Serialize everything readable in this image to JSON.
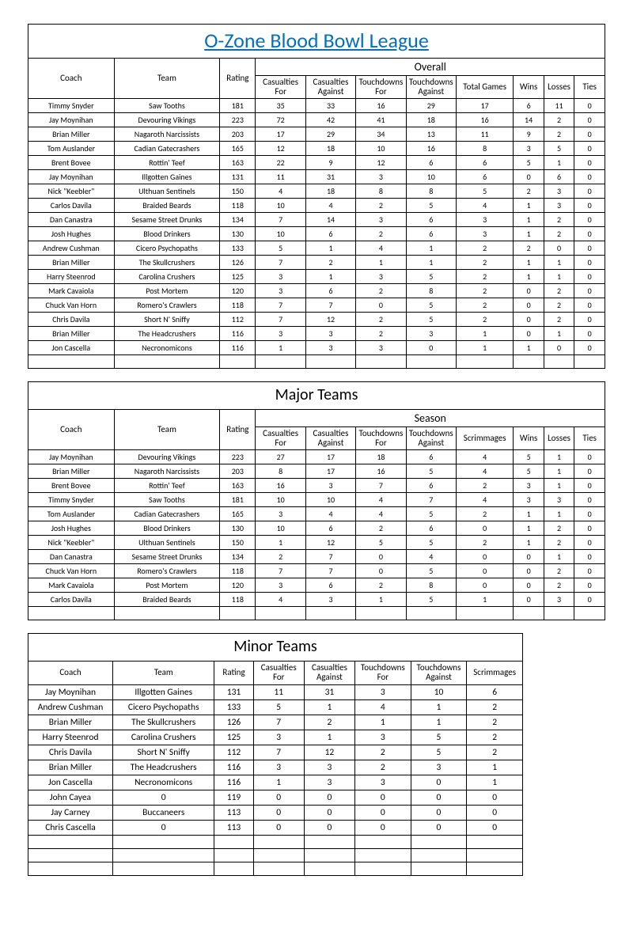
{
  "title": "O-Zone Blood Bowl League",
  "headers": {
    "coach": "Coach",
    "team": "Team",
    "rating": "Rating",
    "cas_for": "Casualties For",
    "cas_against": "Casualties Against",
    "td_for": "Touchdowns For",
    "td_against": "Touchdowns Against",
    "total_games": "Total Games",
    "scrimmages": "Scrimmages",
    "wins": "Wins",
    "losses": "Losses",
    "ties": "Ties"
  },
  "groups": {
    "overall": "Overall",
    "season": "Season",
    "major": "Major Teams",
    "minor": "Minor Teams"
  },
  "overall": [
    {
      "coach": "Timmy Snyder",
      "team": "Saw Tooths",
      "rating": 181,
      "cf": 35,
      "ca": 33,
      "tf": 16,
      "ta": 29,
      "games": 17,
      "w": 6,
      "l": 11,
      "t": 0
    },
    {
      "coach": "Jay Moynihan",
      "team": "Devouring Vikings",
      "rating": 223,
      "cf": 72,
      "ca": 42,
      "tf": 41,
      "ta": 18,
      "games": 16,
      "w": 14,
      "l": 2,
      "t": 0
    },
    {
      "coach": "Brian Miller",
      "team": "Nagaroth Narcissists",
      "rating": 203,
      "cf": 17,
      "ca": 29,
      "tf": 34,
      "ta": 13,
      "games": 11,
      "w": 9,
      "l": 2,
      "t": 0
    },
    {
      "coach": "Tom Auslander",
      "team": "Cadian Gatecrashers",
      "rating": 165,
      "cf": 12,
      "ca": 18,
      "tf": 10,
      "ta": 16,
      "games": 8,
      "w": 3,
      "l": 5,
      "t": 0
    },
    {
      "coach": "Brent Bovee",
      "team": "Rottin' Teef",
      "rating": 163,
      "cf": 22,
      "ca": 9,
      "tf": 12,
      "ta": 6,
      "games": 6,
      "w": 5,
      "l": 1,
      "t": 0
    },
    {
      "coach": "Jay Moynihan",
      "team": "Illgotten Gaines",
      "rating": 131,
      "cf": 11,
      "ca": 31,
      "tf": 3,
      "ta": 10,
      "games": 6,
      "w": 0,
      "l": 6,
      "t": 0
    },
    {
      "coach": "Nick \"Keebler\"",
      "team": "Ulthuan Sentinels",
      "rating": 150,
      "cf": 4,
      "ca": 18,
      "tf": 8,
      "ta": 8,
      "games": 5,
      "w": 2,
      "l": 3,
      "t": 0
    },
    {
      "coach": "Carlos Davila",
      "team": "Braided Beards",
      "rating": 118,
      "cf": 10,
      "ca": 4,
      "tf": 2,
      "ta": 5,
      "games": 4,
      "w": 1,
      "l": 3,
      "t": 0
    },
    {
      "coach": "Dan Canastra",
      "team": "Sesame Street Drunks",
      "rating": 134,
      "cf": 7,
      "ca": 14,
      "tf": 3,
      "ta": 6,
      "games": 3,
      "w": 1,
      "l": 2,
      "t": 0
    },
    {
      "coach": "Josh Hughes",
      "team": "Blood Drinkers",
      "rating": 130,
      "cf": 10,
      "ca": 6,
      "tf": 2,
      "ta": 6,
      "games": 3,
      "w": 1,
      "l": 2,
      "t": 0
    },
    {
      "coach": "Andrew Cushman",
      "team": "Cicero Psychopaths",
      "rating": 133,
      "cf": 5,
      "ca": 1,
      "tf": 4,
      "ta": 1,
      "games": 2,
      "w": 2,
      "l": 0,
      "t": 0
    },
    {
      "coach": "Brian Miller",
      "team": "The Skullcrushers",
      "rating": 126,
      "cf": 7,
      "ca": 2,
      "tf": 1,
      "ta": 1,
      "games": 2,
      "w": 1,
      "l": 1,
      "t": 0
    },
    {
      "coach": "Harry Steenrod",
      "team": "Carolina Crushers",
      "rating": 125,
      "cf": 3,
      "ca": 1,
      "tf": 3,
      "ta": 5,
      "games": 2,
      "w": 1,
      "l": 1,
      "t": 0
    },
    {
      "coach": "Mark Cavaiola",
      "team": "Post Mortem",
      "rating": 120,
      "cf": 3,
      "ca": 6,
      "tf": 2,
      "ta": 8,
      "games": 2,
      "w": 0,
      "l": 2,
      "t": 0
    },
    {
      "coach": "Chuck Van Horn",
      "team": "Romero's Crawlers",
      "rating": 118,
      "cf": 7,
      "ca": 7,
      "tf": 0,
      "ta": 5,
      "games": 2,
      "w": 0,
      "l": 2,
      "t": 0
    },
    {
      "coach": "Chris Davila",
      "team": "Short N' Sniffy",
      "rating": 112,
      "cf": 7,
      "ca": 12,
      "tf": 2,
      "ta": 5,
      "games": 2,
      "w": 0,
      "l": 2,
      "t": 0
    },
    {
      "coach": "Brian Miller",
      "team": "The Headcrushers",
      "rating": 116,
      "cf": 3,
      "ca": 3,
      "tf": 2,
      "ta": 3,
      "games": 1,
      "w": 0,
      "l": 1,
      "t": 0
    },
    {
      "coach": "Jon Cascella",
      "team": "Necronomicons",
      "rating": 116,
      "cf": 1,
      "ca": 3,
      "tf": 3,
      "ta": 0,
      "games": 1,
      "w": 1,
      "l": 0,
      "t": 0
    }
  ],
  "major": [
    {
      "coach": "Jay Moynihan",
      "team": "Devouring Vikings",
      "rating": 223,
      "cf": 27,
      "ca": 17,
      "tf": 18,
      "ta": 6,
      "scrim": 4,
      "w": 5,
      "l": 1,
      "t": 0
    },
    {
      "coach": "Brian Miller",
      "team": "Nagaroth Narcissists",
      "rating": 203,
      "cf": 8,
      "ca": 17,
      "tf": 16,
      "ta": 5,
      "scrim": 4,
      "w": 5,
      "l": 1,
      "t": 0
    },
    {
      "coach": "Brent Bovee",
      "team": "Rottin' Teef",
      "rating": 163,
      "cf": 16,
      "ca": 3,
      "tf": 7,
      "ta": 6,
      "scrim": 2,
      "w": 3,
      "l": 1,
      "t": 0
    },
    {
      "coach": "Timmy Snyder",
      "team": "Saw Tooths",
      "rating": 181,
      "cf": 10,
      "ca": 10,
      "tf": 4,
      "ta": 7,
      "scrim": 4,
      "w": 3,
      "l": 3,
      "t": 0
    },
    {
      "coach": "Tom Auslander",
      "team": "Cadian Gatecrashers",
      "rating": 165,
      "cf": 3,
      "ca": 4,
      "tf": 4,
      "ta": 5,
      "scrim": 2,
      "w": 1,
      "l": 1,
      "t": 0
    },
    {
      "coach": "Josh Hughes",
      "team": "Blood Drinkers",
      "rating": 130,
      "cf": 10,
      "ca": 6,
      "tf": 2,
      "ta": 6,
      "scrim": 0,
      "w": 1,
      "l": 2,
      "t": 0
    },
    {
      "coach": "Nick \"Keebler\"",
      "team": "Ulthuan Sentinels",
      "rating": 150,
      "cf": 1,
      "ca": 12,
      "tf": 5,
      "ta": 5,
      "scrim": 2,
      "w": 1,
      "l": 2,
      "t": 0
    },
    {
      "coach": "Dan Canastra",
      "team": "Sesame Street Drunks",
      "rating": 134,
      "cf": 2,
      "ca": 7,
      "tf": 0,
      "ta": 4,
      "scrim": 0,
      "w": 0,
      "l": 1,
      "t": 0
    },
    {
      "coach": "Chuck Van Horn",
      "team": "Romero's Crawlers",
      "rating": 118,
      "cf": 7,
      "ca": 7,
      "tf": 0,
      "ta": 5,
      "scrim": 0,
      "w": 0,
      "l": 2,
      "t": 0
    },
    {
      "coach": "Mark Cavaiola",
      "team": "Post Mortem",
      "rating": 120,
      "cf": 3,
      "ca": 6,
      "tf": 2,
      "ta": 8,
      "scrim": 0,
      "w": 0,
      "l": 2,
      "t": 0
    },
    {
      "coach": "Carlos Davila",
      "team": "Braided Beards",
      "rating": 118,
      "cf": 4,
      "ca": 3,
      "tf": 1,
      "ta": 5,
      "scrim": 1,
      "w": 0,
      "l": 3,
      "t": 0
    }
  ],
  "minor": [
    {
      "coach": "Jay Moynihan",
      "team": "Illgotten Gaines",
      "rating": 131,
      "cf": 11,
      "ca": 31,
      "tf": 3,
      "ta": 10,
      "scrim": 6
    },
    {
      "coach": "Andrew Cushman",
      "team": "Cicero Psychopaths",
      "rating": 133,
      "cf": 5,
      "ca": 1,
      "tf": 4,
      "ta": 1,
      "scrim": 2
    },
    {
      "coach": "Brian Miller",
      "team": "The Skullcrushers",
      "rating": 126,
      "cf": 7,
      "ca": 2,
      "tf": 1,
      "ta": 1,
      "scrim": 2
    },
    {
      "coach": "Harry Steenrod",
      "team": "Carolina Crushers",
      "rating": 125,
      "cf": 3,
      "ca": 1,
      "tf": 3,
      "ta": 5,
      "scrim": 2
    },
    {
      "coach": "Chris Davila",
      "team": "Short N' Sniffy",
      "rating": 112,
      "cf": 7,
      "ca": 12,
      "tf": 2,
      "ta": 5,
      "scrim": 2
    },
    {
      "coach": "Brian Miller",
      "team": "The Headcrushers",
      "rating": 116,
      "cf": 3,
      "ca": 3,
      "tf": 2,
      "ta": 3,
      "scrim": 1
    },
    {
      "coach": "Jon Cascella",
      "team": "Necronomicons",
      "rating": 116,
      "cf": 1,
      "ca": 3,
      "tf": 3,
      "ta": 0,
      "scrim": 1
    },
    {
      "coach": "John Cayea",
      "team": "0",
      "rating": 119,
      "cf": 0,
      "ca": 0,
      "tf": 0,
      "ta": 0,
      "scrim": 0
    },
    {
      "coach": "Jay Carney",
      "team": "Buccaneers",
      "rating": 113,
      "cf": 0,
      "ca": 0,
      "tf": 0,
      "ta": 0,
      "scrim": 0
    },
    {
      "coach": "Chris Cascella",
      "team": "0",
      "rating": 113,
      "cf": 0,
      "ca": 0,
      "tf": 0,
      "ta": 0,
      "scrim": 0
    }
  ]
}
